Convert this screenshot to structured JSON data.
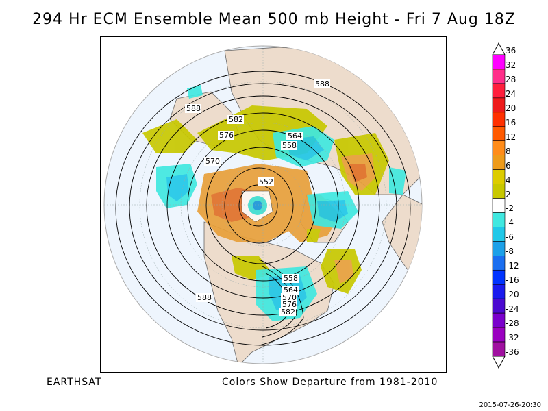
{
  "title": "294 Hr ECM Ensemble Mean 500 mb Height - Fri 7 Aug 18Z",
  "footer_left": "EARTHSAT",
  "footer_mid": "Colors Show Departure from 1981-2010",
  "timestamp": "2015-07-26-20:30",
  "colorbar": {
    "labels": [
      "36",
      "32",
      "28",
      "24",
      "20",
      "16",
      "12",
      "8",
      "6",
      "4",
      "2",
      "-2",
      "-4",
      "-6",
      "-8",
      "-12",
      "-16",
      "-20",
      "-24",
      "-28",
      "-32",
      "-36"
    ],
    "colors": [
      "#ff00ff",
      "#ff2f8a",
      "#ff1f3d",
      "#ee1b1b",
      "#ff3000",
      "#ff5a00",
      "#ff8c1a",
      "#ee9b1a",
      "#ddcc00",
      "#c8c800",
      "#ffffff",
      "#40e8e0",
      "#20c8e8",
      "#1ca0e8",
      "#1a6ef0",
      "#0033ff",
      "#1a1aee",
      "#4b0ad0",
      "#7a00cc",
      "#9a00c0",
      "#a010a0"
    ]
  },
  "contour_labels": [
    {
      "text": "588"
    },
    {
      "text": "588"
    },
    {
      "text": "588"
    },
    {
      "text": "582"
    },
    {
      "text": "576"
    },
    {
      "text": "570"
    },
    {
      "text": "564"
    },
    {
      "text": "558"
    },
    {
      "text": "552"
    },
    {
      "text": "558"
    },
    {
      "text": "564"
    },
    {
      "text": "570"
    },
    {
      "text": "576"
    },
    {
      "text": "582"
    }
  ]
}
